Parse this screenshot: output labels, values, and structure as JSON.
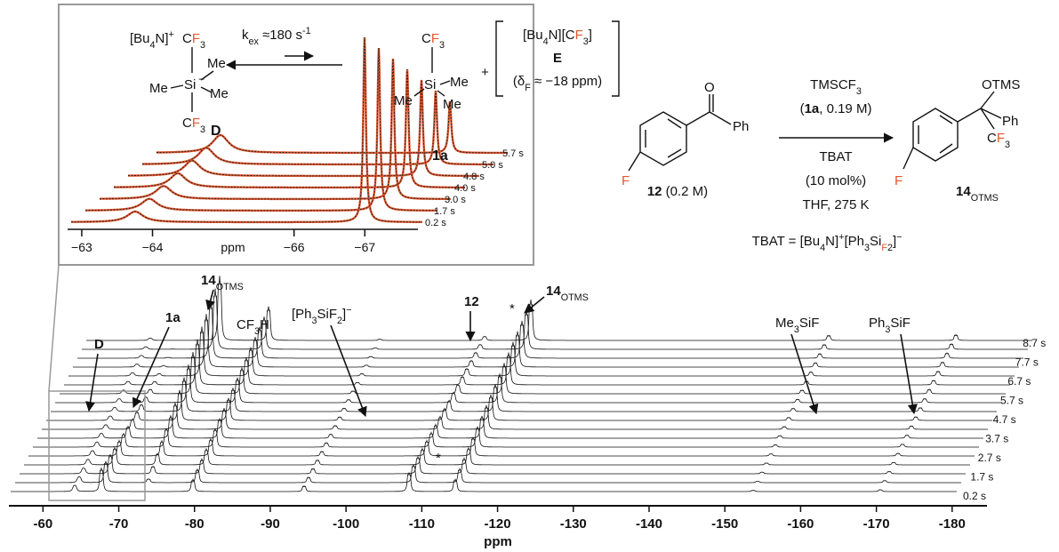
{
  "inset": {
    "cation": [
      "[Bu",
      "4",
      "N]",
      "+"
    ],
    "anion_cf3_top": [
      "C",
      "F",
      "3"
    ],
    "me_left": "Me",
    "si": "Si",
    "charge": "−",
    "me_upper": "Me",
    "me_lower": "Me",
    "anion_cf3_bottom": [
      "C",
      "F",
      "3"
    ],
    "peak_D": "D",
    "rate": [
      "k",
      "ex",
      " ≈180 s",
      "-1"
    ],
    "tms_cf3": [
      "C",
      "F",
      "3"
    ],
    "tms_si": "Si",
    "tms_me_left": "Me",
    "tms_me_right": "Me",
    "tms_me_lower": "Me",
    "plus": "+",
    "E_formula": [
      "[Bu",
      "4",
      "N][C",
      "F",
      "3",
      "]"
    ],
    "E_label": "E",
    "E_shift": [
      "(δ",
      "F",
      " ≈ −18 ppm)"
    ],
    "peak_1a": "1a",
    "time_labels": [
      "0.2 s",
      "1.7 s",
      "3.0 s",
      "4.0 s",
      "4.8 s",
      "5.0 s",
      "5.7 s"
    ],
    "axis": {
      "xlim": [
        -62.8,
        -67.75
      ],
      "xticks": [
        {
          "value": -63,
          "label": "−63"
        },
        {
          "value": -64,
          "label": "−64"
        },
        {
          "value": -66,
          "label": "−66"
        },
        {
          "value": -67,
          "label": "−67"
        }
      ],
      "label": "ppm"
    }
  },
  "scheme": {
    "ketone_O": "O",
    "ketone_Ph": "Ph",
    "ketone_F": "F",
    "ketone_label": [
      "12",
      " (0.2 M)"
    ],
    "reagent": [
      "TMSCF",
      "3"
    ],
    "reagent_amount": [
      "(",
      "1a",
      ", 0.19 M)"
    ],
    "catalyst": "TBAT",
    "catalyst_amount": "(10 mol%)",
    "conditions": "THF, 275 K",
    "product_OTMS": "OTMS",
    "product_Ph": "Ph",
    "product_CF3": [
      "C",
      "F",
      "3"
    ],
    "product_F": "F",
    "product_label": [
      "14",
      "OTMS"
    ],
    "tbat_definition": [
      "TBAT = [Bu",
      "4",
      "N]",
      "+",
      "[Ph",
      "3",
      "Si",
      "F",
      "2",
      "]",
      "−"
    ]
  },
  "main": {
    "annotations": {
      "D": "D",
      "1a": "1a",
      "product_a": [
        "14",
        "OTMS"
      ],
      "cf3h": [
        "CF",
        "3",
        "H"
      ],
      "difluorosilicate": [
        "[Ph",
        "3",
        "SiF",
        "2",
        "]",
        "−"
      ],
      "ketone": "12",
      "star_a": "*",
      "product_b": [
        "14",
        "OTMS"
      ],
      "star_b": "*",
      "me3sif": [
        "Me",
        "3",
        "SiF"
      ],
      "ph3sif": [
        "Ph",
        "3",
        "SiF"
      ]
    },
    "time_labels": [
      "0.2 s",
      "1.7 s",
      "2.7 s",
      "3.7 s",
      "4.7 s",
      "5.7 s",
      "6.7 s",
      "7.7 s",
      "8.7 s"
    ],
    "axis": {
      "xlim": [
        -55.5,
        -184.6
      ],
      "xticks": [
        -60,
        -70,
        -80,
        -90,
        -100,
        -110,
        -120,
        -130,
        -140,
        -150,
        -160,
        -170,
        -180
      ],
      "label": "ppm"
    }
  }
}
